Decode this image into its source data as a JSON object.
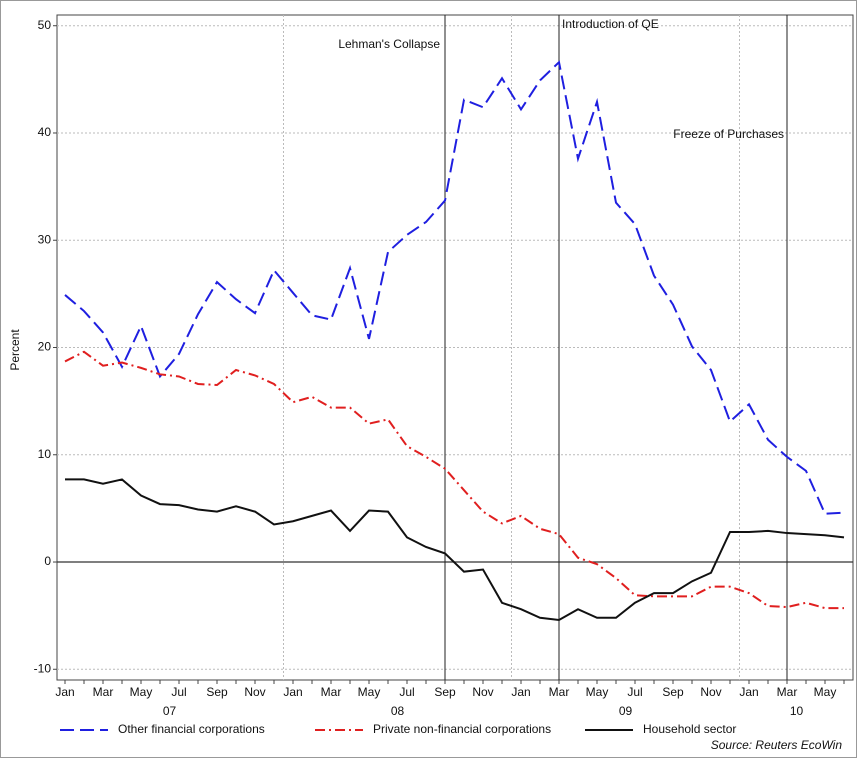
{
  "chart_data": {
    "type": "line",
    "y_label": "Percent",
    "source": "Source: Reuters EcoWin",
    "categories": [
      "Jan",
      null,
      "Mar",
      null,
      "May",
      null,
      "Jul",
      null,
      "Sep",
      null,
      "Nov",
      null,
      "Jan",
      null,
      "Mar",
      null,
      "May",
      null,
      "Jul",
      null,
      "Sep",
      null,
      "Nov",
      null,
      "Jan",
      null,
      "Mar",
      null,
      "May",
      null,
      "Jul",
      null,
      "Sep",
      null,
      "Nov",
      null,
      "Jan",
      null,
      "Mar",
      null,
      "May",
      null
    ],
    "year_labels": [
      "07",
      "08",
      "09",
      "10"
    ],
    "series": [
      {
        "name": "Other financial corporations",
        "color": "#1f1fe0",
        "style": "dashed",
        "values": [
          24.9,
          23.4,
          21.4,
          18.2,
          22.0,
          17.3,
          19.4,
          23.1,
          26.1,
          24.5,
          23.2,
          27.2,
          25.1,
          23.0,
          22.6,
          27.4,
          20.8,
          28.9,
          30.5,
          31.7,
          33.7,
          43.1,
          42.4,
          45.1,
          42.2,
          44.9,
          46.6,
          37.6,
          42.9,
          33.5,
          31.5,
          26.7,
          24.0,
          20.1,
          17.9,
          13.1,
          14.7,
          11.4,
          9.8,
          8.5,
          4.5,
          4.6
        ]
      },
      {
        "name": "Private non-financial corporations",
        "color": "#e01f1f",
        "style": "dashdot",
        "values": [
          18.7,
          19.6,
          18.3,
          18.6,
          18.1,
          17.5,
          17.3,
          16.6,
          16.5,
          17.9,
          17.4,
          16.6,
          14.9,
          15.4,
          14.4,
          14.4,
          12.9,
          13.3,
          10.8,
          9.8,
          8.7,
          6.7,
          4.7,
          3.6,
          4.3,
          3.1,
          2.6,
          0.4,
          -0.2,
          -1.5,
          -3.1,
          -3.2,
          -3.2,
          -3.2,
          -2.3,
          -2.3,
          -2.9,
          -4.1,
          -4.2,
          -3.8,
          -4.3,
          -4.3
        ]
      },
      {
        "name": "Household sector",
        "color": "#111111",
        "style": "solid",
        "values": [
          7.7,
          7.7,
          7.3,
          7.7,
          6.2,
          5.4,
          5.3,
          4.9,
          4.7,
          5.2,
          4.7,
          3.5,
          3.8,
          4.3,
          4.8,
          2.9,
          4.8,
          4.7,
          2.3,
          1.4,
          0.8,
          -0.9,
          -0.7,
          -3.8,
          -4.4,
          -5.2,
          -5.4,
          -4.4,
          -5.2,
          -5.2,
          -3.8,
          -2.9,
          -2.9,
          -1.8,
          -1.0,
          2.8,
          2.8,
          2.9,
          2.7,
          2.6,
          2.5,
          2.3
        ]
      }
    ],
    "annotations": [
      {
        "text": "Lehman's Collapse",
        "at": 20
      },
      {
        "text": "Introduction of QE",
        "at": 26
      },
      {
        "text": "Freeze of Purchases",
        "at": 38
      }
    ],
    "ylim": [
      -11,
      51
    ],
    "yticks": [
      -10,
      0,
      10,
      20,
      30,
      40,
      50
    ],
    "grid": true
  }
}
